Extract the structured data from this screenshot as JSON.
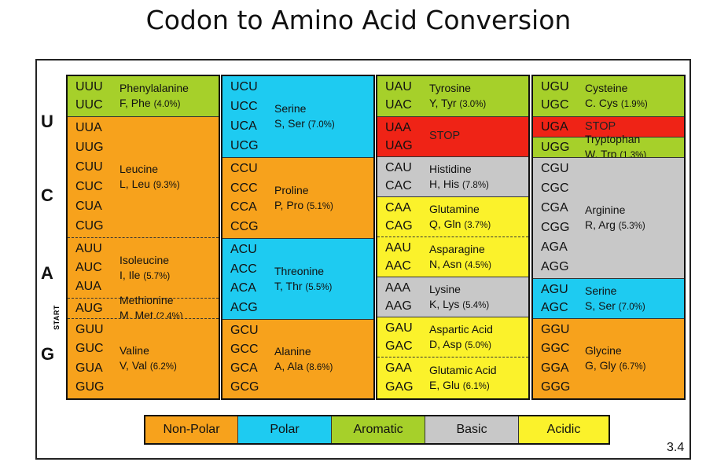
{
  "title": "Codon to Amino Acid Conversion",
  "colors": {
    "non_polar": "#f7a21c",
    "polar": "#1ecbf1",
    "aromatic": "#a6d02a",
    "basic": "#c8c8c8",
    "acidic": "#fbf22b",
    "stop": "#ef2316"
  },
  "row_labels": [
    "U",
    "C",
    "A",
    "G"
  ],
  "start_label": "START",
  "columns": [
    {
      "blocks": [
        {
          "codons": [
            "UUU",
            "UUC"
          ],
          "name": "Phenylalanine",
          "abbr": "F, Phe",
          "pct": "(4.0%)",
          "type": "aromatic"
        },
        {
          "codons": [
            "UUA",
            "UUG",
            "CUU",
            "CUC",
            "CUA",
            "CUG"
          ],
          "name": "Leucine",
          "abbr": "L, Leu",
          "pct": "(9.3%)",
          "type": "non_polar"
        },
        {
          "codons": [
            "AUU",
            "AUC",
            "AUA"
          ],
          "name": "Isoleucine",
          "abbr": "I, Ile",
          "pct": "(5.7%)",
          "type": "non_polar"
        },
        {
          "codons": [
            "AUG"
          ],
          "name": "Methionine",
          "abbr": "M, Met",
          "pct": "(2.4%)",
          "type": "non_polar"
        },
        {
          "codons": [
            "GUU",
            "GUC",
            "GUA",
            "GUG"
          ],
          "name": "Valine",
          "abbr": "V, Val",
          "pct": "(6.2%)",
          "type": "non_polar"
        }
      ]
    },
    {
      "blocks": [
        {
          "codons": [
            "UCU",
            "UCC",
            "UCA",
            "UCG"
          ],
          "name": "Serine",
          "abbr": "S, Ser",
          "pct": "(7.0%)",
          "type": "polar"
        },
        {
          "codons": [
            "CCU",
            "CCC",
            "CCA",
            "CCG"
          ],
          "name": "Proline",
          "abbr": "P, Pro",
          "pct": "(5.1%)",
          "type": "non_polar"
        },
        {
          "codons": [
            "ACU",
            "ACC",
            "ACA",
            "ACG"
          ],
          "name": "Threonine",
          "abbr": "T, Thr",
          "pct": "(5.5%)",
          "type": "polar"
        },
        {
          "codons": [
            "GCU",
            "GCC",
            "GCA",
            "GCG"
          ],
          "name": "Alanine",
          "abbr": "A, Ala",
          "pct": "(8.6%)",
          "type": "non_polar"
        }
      ]
    },
    {
      "blocks": [
        {
          "codons": [
            "UAU",
            "UAC"
          ],
          "name": "Tyrosine",
          "abbr": "Y, Tyr",
          "pct": "(3.0%)",
          "type": "aromatic"
        },
        {
          "codons": [
            "UAA",
            "UAG"
          ],
          "name": "STOP",
          "abbr": "",
          "pct": "",
          "type": "stop"
        },
        {
          "codons": [
            "CAU",
            "CAC"
          ],
          "name": "Histidine",
          "abbr": "H, His",
          "pct": "(7.8%)",
          "type": "basic"
        },
        {
          "codons": [
            "CAA",
            "CAG"
          ],
          "name": "Glutamine",
          "abbr": "Q, Gln",
          "pct": "(3.7%)",
          "type": "acidic"
        },
        {
          "codons": [
            "AAU",
            "AAC"
          ],
          "name": "Asparagine",
          "abbr": "N, Asn",
          "pct": "(4.5%)",
          "type": "acidic"
        },
        {
          "codons": [
            "AAA",
            "AAG"
          ],
          "name": "Lysine",
          "abbr": "K, Lys",
          "pct": "(5.4%)",
          "type": "basic"
        },
        {
          "codons": [
            "GAU",
            "GAC"
          ],
          "name": "Aspartic Acid",
          "abbr": "D, Asp",
          "pct": "(5.0%)",
          "type": "acidic"
        },
        {
          "codons": [
            "GAA",
            "GAG"
          ],
          "name": "Glutamic Acid",
          "abbr": "E, Glu",
          "pct": "(6.1%)",
          "type": "acidic"
        }
      ]
    },
    {
      "blocks": [
        {
          "codons": [
            "UGU",
            "UGC"
          ],
          "name": "Cysteine",
          "abbr": "C. Cys",
          "pct": "(1.9%)",
          "type": "aromatic"
        },
        {
          "codons": [
            "UGA"
          ],
          "name": "STOP",
          "abbr": "",
          "pct": "",
          "type": "stop"
        },
        {
          "codons": [
            "UGG"
          ],
          "name": "Tryptophan",
          "abbr": "W, Trp",
          "pct": "(1.3%)",
          "type": "aromatic"
        },
        {
          "codons": [
            "CGU",
            "CGC",
            "CGA",
            "CGG",
            "AGA",
            "AGG"
          ],
          "name": "Arginine",
          "abbr": "R, Arg",
          "pct": "(5.3%)",
          "type": "basic"
        },
        {
          "codons": [
            "AGU",
            "AGC"
          ],
          "name": "Serine",
          "abbr": "S, Ser",
          "pct": "(7.0%)",
          "type": "polar"
        },
        {
          "codons": [
            "GGU",
            "GGC",
            "GGA",
            "GGG"
          ],
          "name": "Glycine",
          "abbr": "G, Gly",
          "pct": "(6.7%)",
          "type": "non_polar"
        }
      ]
    }
  ],
  "legend": [
    {
      "label": "Non-Polar",
      "type": "non_polar"
    },
    {
      "label": "Polar",
      "type": "polar"
    },
    {
      "label": "Aromatic",
      "type": "aromatic"
    },
    {
      "label": "Basic",
      "type": "basic"
    },
    {
      "label": "Acidic",
      "type": "acidic"
    }
  ],
  "figure_number": "3.4"
}
